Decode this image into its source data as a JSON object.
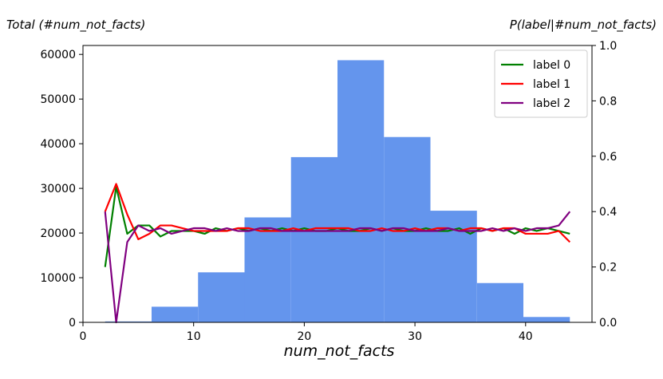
{
  "chart_data": {
    "type": "bar+line",
    "xlabel": "num_not_facts",
    "ylabel_left": "Total (#num_not_facts)",
    "ylabel_right": "P(label|#num_not_facts)",
    "xlim": [
      0,
      46
    ],
    "ylim_left": [
      0,
      62000
    ],
    "ylim_right": [
      0,
      1.0
    ],
    "xticks": [
      0,
      10,
      20,
      30,
      40
    ],
    "yticks_left": [
      0,
      10000,
      20000,
      30000,
      40000,
      50000,
      60000
    ],
    "yticks_right": [
      0.0,
      0.2,
      0.4,
      0.6,
      0.8,
      1.0
    ],
    "histogram": {
      "color": "#6495ED",
      "bins": [
        {
          "x0": 2.0,
          "x1": 6.2,
          "value": 200
        },
        {
          "x0": 6.2,
          "x1": 10.4,
          "value": 3500
        },
        {
          "x0": 10.4,
          "x1": 14.6,
          "value": 11200
        },
        {
          "x0": 14.6,
          "x1": 18.8,
          "value": 23500
        },
        {
          "x0": 18.8,
          "x1": 23.0,
          "value": 37000
        },
        {
          "x0": 23.0,
          "x1": 27.2,
          "value": 58700
        },
        {
          "x0": 27.2,
          "x1": 31.4,
          "value": 41500
        },
        {
          "x0": 31.4,
          "x1": 35.6,
          "value": 25000
        },
        {
          "x0": 35.6,
          "x1": 39.8,
          "value": 8800
        },
        {
          "x0": 39.8,
          "x1": 44.0,
          "value": 1200
        }
      ]
    },
    "x": [
      2,
      3,
      4,
      5,
      6,
      7,
      8,
      9,
      10,
      11,
      12,
      13,
      14,
      15,
      16,
      17,
      18,
      19,
      20,
      21,
      22,
      23,
      24,
      25,
      26,
      27,
      28,
      29,
      30,
      31,
      32,
      33,
      34,
      35,
      36,
      37,
      38,
      39,
      40,
      41,
      42,
      43,
      44
    ],
    "series": [
      {
        "name": "label 0",
        "color": "#008000",
        "values": [
          0.2,
          0.49,
          0.32,
          0.35,
          0.35,
          0.31,
          0.33,
          0.33,
          0.33,
          0.32,
          0.34,
          0.33,
          0.34,
          0.33,
          0.34,
          0.33,
          0.34,
          0.33,
          0.34,
          0.33,
          0.33,
          0.34,
          0.33,
          0.33,
          0.34,
          0.33,
          0.34,
          0.33,
          0.33,
          0.34,
          0.33,
          0.33,
          0.34,
          0.32,
          0.34,
          0.33,
          0.34,
          0.32,
          0.34,
          0.33,
          0.34,
          0.33,
          0.32
        ]
      },
      {
        "name": "label 1",
        "color": "#FF0000",
        "values": [
          0.4,
          0.5,
          0.39,
          0.3,
          0.32,
          0.35,
          0.35,
          0.34,
          0.33,
          0.33,
          0.33,
          0.33,
          0.34,
          0.34,
          0.33,
          0.33,
          0.33,
          0.34,
          0.33,
          0.34,
          0.34,
          0.34,
          0.34,
          0.33,
          0.33,
          0.34,
          0.33,
          0.33,
          0.34,
          0.33,
          0.34,
          0.34,
          0.33,
          0.34,
          0.34,
          0.33,
          0.34,
          0.34,
          0.32,
          0.32,
          0.32,
          0.33,
          0.29
        ]
      },
      {
        "name": "label 2",
        "color": "#800080",
        "values": [
          0.4,
          0.0,
          0.29,
          0.35,
          0.33,
          0.34,
          0.32,
          0.33,
          0.34,
          0.34,
          0.33,
          0.34,
          0.33,
          0.33,
          0.34,
          0.34,
          0.33,
          0.33,
          0.33,
          0.33,
          0.33,
          0.33,
          0.33,
          0.34,
          0.34,
          0.33,
          0.34,
          0.34,
          0.33,
          0.33,
          0.33,
          0.34,
          0.33,
          0.33,
          0.33,
          0.34,
          0.33,
          0.34,
          0.33,
          0.34,
          0.34,
          0.35,
          0.4
        ]
      }
    ],
    "legend_position": "top-right"
  }
}
